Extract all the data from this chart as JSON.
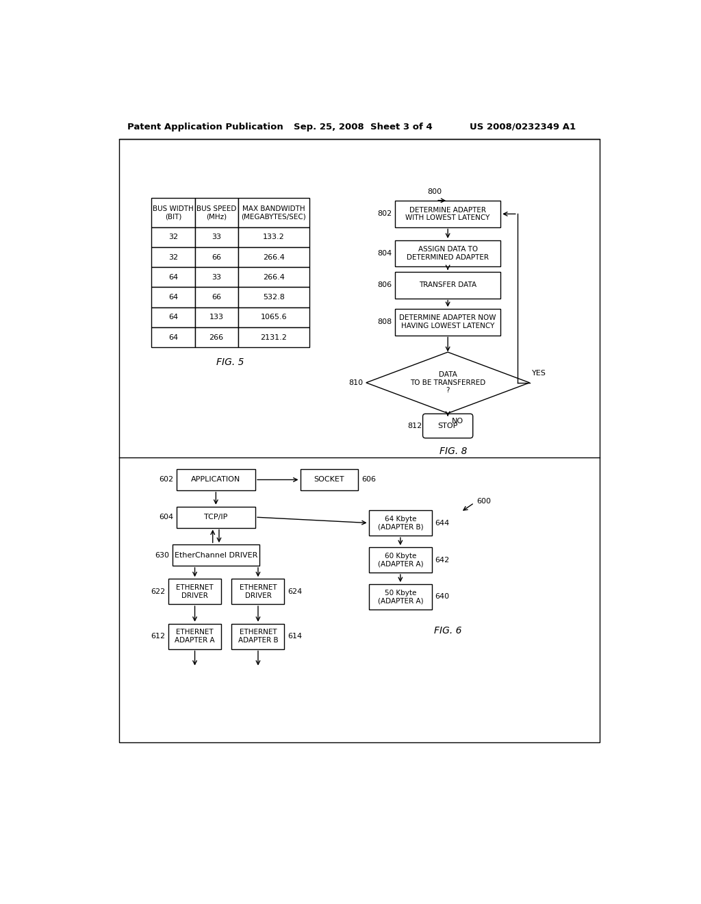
{
  "header_left": "Patent Application Publication",
  "header_center": "Sep. 25, 2008  Sheet 3 of 4",
  "header_right": "US 2008/0232349 A1",
  "bg_color": "#ffffff",
  "table_headers": [
    "BUS WIDTH\n(BIT)",
    "BUS SPEED\n(MHz)",
    "MAX BANDWIDTH\n(MEGABYTES/SEC)"
  ],
  "table_rows": [
    [
      "32",
      "33",
      "133.2"
    ],
    [
      "32",
      "66",
      "266.4"
    ],
    [
      "64",
      "33",
      "266.4"
    ],
    [
      "64",
      "66",
      "532.8"
    ],
    [
      "64",
      "133",
      "1065.6"
    ],
    [
      "64",
      "266",
      "2131.2"
    ]
  ],
  "fig5_caption": "FIG. 5",
  "fig6_caption": "FIG. 6",
  "fig8_caption": "FIG. 8",
  "fc8_nodes": [
    {
      "id": "800",
      "label": "800"
    },
    {
      "id": "802",
      "label": "802",
      "text": "DETERMINE ADAPTER\nWITH LOWEST LATENCY"
    },
    {
      "id": "804",
      "label": "804",
      "text": "ASSIGN DATA TO\nDETERMINED ADAPTER"
    },
    {
      "id": "806",
      "label": "806",
      "text": "TRANSFER DATA"
    },
    {
      "id": "808",
      "label": "808",
      "text": "DETERMINE ADAPTER NOW\nHAVING LOWEST LATENCY"
    },
    {
      "id": "810",
      "label": "810",
      "text": "DATA\nTO BE TRANSFERRED\n?"
    },
    {
      "id": "812",
      "label": "812",
      "text": "STOP"
    }
  ],
  "fc6_nodes": [
    {
      "id": "602",
      "label": "602",
      "text": "APPLICATION"
    },
    {
      "id": "606",
      "label": "606",
      "text": "SOCKET"
    },
    {
      "id": "604",
      "label": "604",
      "text": "TCP/IP"
    },
    {
      "id": "630",
      "label": "630",
      "text": "EtherChannel DRIVER"
    },
    {
      "id": "622",
      "label": "622",
      "text": "ETHERNET\nDRIVER"
    },
    {
      "id": "624",
      "label": "624",
      "text": "ETHERNET\nDRIVER"
    },
    {
      "id": "612",
      "label": "612",
      "text": "ETHERNET\nADAPTER A"
    },
    {
      "id": "614",
      "label": "614",
      "text": "ETHERNET\nADAPTER B"
    },
    {
      "id": "644",
      "label": "644",
      "text": "64 Kbyte\n(ADAPTER B)"
    },
    {
      "id": "642",
      "label": "642",
      "text": "60 Kbyte\n(ADAPTER A)"
    },
    {
      "id": "640",
      "label": "640",
      "text": "50 Kbyte\n(ADAPTER A)"
    },
    {
      "id": "600",
      "label": "600"
    }
  ]
}
